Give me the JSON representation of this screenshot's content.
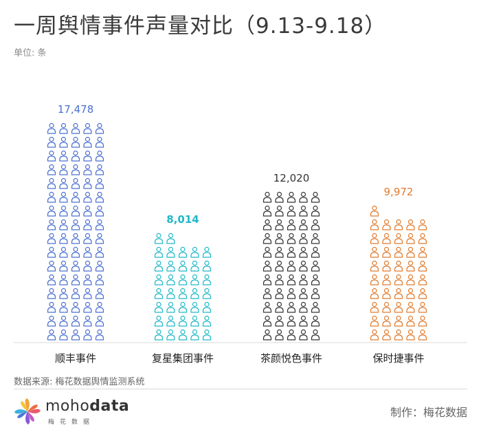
{
  "title": "一周舆情事件声量对比（9.13-9.18）",
  "unit_label": "单位: 条",
  "source_label": "数据来源: 梅花数据舆情监测系统",
  "credit": "制作：梅花数据",
  "brand": {
    "name_light": "moho",
    "name_bold": "data",
    "sub": "梅花数据"
  },
  "chart_data": {
    "type": "pictograph-bar",
    "icon": "person-icon",
    "categories": [
      "顺丰事件",
      "复星集团事件",
      "茶颜悦色事件",
      "保时捷事件"
    ],
    "values": [
      17478,
      8014,
      12020,
      9972
    ],
    "value_labels": [
      "17,478",
      "8,014",
      "12,020",
      "9,972"
    ],
    "icons_per_row": 5,
    "icon_counts": [
      80,
      37,
      55,
      46
    ],
    "colors": [
      "#4a6fcf",
      "#1fb8c9",
      "#333333",
      "#e07a2c"
    ]
  }
}
